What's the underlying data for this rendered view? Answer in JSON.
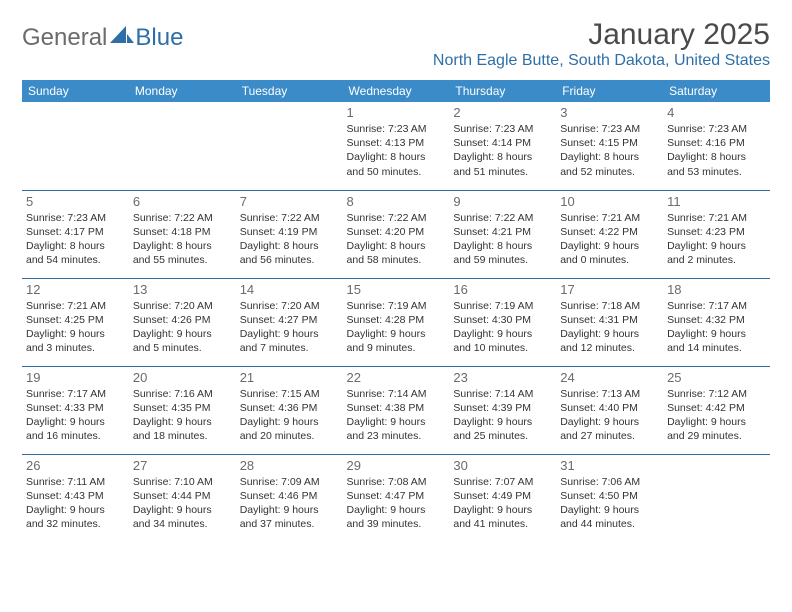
{
  "logo": {
    "text1": "General",
    "text2": "Blue"
  },
  "title": "January 2025",
  "location": "North Eagle Butte, South Dakota, United States",
  "colors": {
    "header_bg": "#3b8bc9",
    "header_text": "#ffffff",
    "rule": "#2f6fa8",
    "location_text": "#2f6fa8",
    "title_text": "#4a4a4a",
    "body_text": "#333333",
    "daynum_text": "#6b6b6b"
  },
  "day_headers": [
    "Sunday",
    "Monday",
    "Tuesday",
    "Wednesday",
    "Thursday",
    "Friday",
    "Saturday"
  ],
  "weeks": [
    [
      {
        "day": "",
        "sunrise": "",
        "sunset": "",
        "daylight": ""
      },
      {
        "day": "",
        "sunrise": "",
        "sunset": "",
        "daylight": ""
      },
      {
        "day": "",
        "sunrise": "",
        "sunset": "",
        "daylight": ""
      },
      {
        "day": "1",
        "sunrise": "7:23 AM",
        "sunset": "4:13 PM",
        "daylight": "8 hours and 50 minutes."
      },
      {
        "day": "2",
        "sunrise": "7:23 AM",
        "sunset": "4:14 PM",
        "daylight": "8 hours and 51 minutes."
      },
      {
        "day": "3",
        "sunrise": "7:23 AM",
        "sunset": "4:15 PM",
        "daylight": "8 hours and 52 minutes."
      },
      {
        "day": "4",
        "sunrise": "7:23 AM",
        "sunset": "4:16 PM",
        "daylight": "8 hours and 53 minutes."
      }
    ],
    [
      {
        "day": "5",
        "sunrise": "7:23 AM",
        "sunset": "4:17 PM",
        "daylight": "8 hours and 54 minutes."
      },
      {
        "day": "6",
        "sunrise": "7:22 AM",
        "sunset": "4:18 PM",
        "daylight": "8 hours and 55 minutes."
      },
      {
        "day": "7",
        "sunrise": "7:22 AM",
        "sunset": "4:19 PM",
        "daylight": "8 hours and 56 minutes."
      },
      {
        "day": "8",
        "sunrise": "7:22 AM",
        "sunset": "4:20 PM",
        "daylight": "8 hours and 58 minutes."
      },
      {
        "day": "9",
        "sunrise": "7:22 AM",
        "sunset": "4:21 PM",
        "daylight": "8 hours and 59 minutes."
      },
      {
        "day": "10",
        "sunrise": "7:21 AM",
        "sunset": "4:22 PM",
        "daylight": "9 hours and 0 minutes."
      },
      {
        "day": "11",
        "sunrise": "7:21 AM",
        "sunset": "4:23 PM",
        "daylight": "9 hours and 2 minutes."
      }
    ],
    [
      {
        "day": "12",
        "sunrise": "7:21 AM",
        "sunset": "4:25 PM",
        "daylight": "9 hours and 3 minutes."
      },
      {
        "day": "13",
        "sunrise": "7:20 AM",
        "sunset": "4:26 PM",
        "daylight": "9 hours and 5 minutes."
      },
      {
        "day": "14",
        "sunrise": "7:20 AM",
        "sunset": "4:27 PM",
        "daylight": "9 hours and 7 minutes."
      },
      {
        "day": "15",
        "sunrise": "7:19 AM",
        "sunset": "4:28 PM",
        "daylight": "9 hours and 9 minutes."
      },
      {
        "day": "16",
        "sunrise": "7:19 AM",
        "sunset": "4:30 PM",
        "daylight": "9 hours and 10 minutes."
      },
      {
        "day": "17",
        "sunrise": "7:18 AM",
        "sunset": "4:31 PM",
        "daylight": "9 hours and 12 minutes."
      },
      {
        "day": "18",
        "sunrise": "7:17 AM",
        "sunset": "4:32 PM",
        "daylight": "9 hours and 14 minutes."
      }
    ],
    [
      {
        "day": "19",
        "sunrise": "7:17 AM",
        "sunset": "4:33 PM",
        "daylight": "9 hours and 16 minutes."
      },
      {
        "day": "20",
        "sunrise": "7:16 AM",
        "sunset": "4:35 PM",
        "daylight": "9 hours and 18 minutes."
      },
      {
        "day": "21",
        "sunrise": "7:15 AM",
        "sunset": "4:36 PM",
        "daylight": "9 hours and 20 minutes."
      },
      {
        "day": "22",
        "sunrise": "7:14 AM",
        "sunset": "4:38 PM",
        "daylight": "9 hours and 23 minutes."
      },
      {
        "day": "23",
        "sunrise": "7:14 AM",
        "sunset": "4:39 PM",
        "daylight": "9 hours and 25 minutes."
      },
      {
        "day": "24",
        "sunrise": "7:13 AM",
        "sunset": "4:40 PM",
        "daylight": "9 hours and 27 minutes."
      },
      {
        "day": "25",
        "sunrise": "7:12 AM",
        "sunset": "4:42 PM",
        "daylight": "9 hours and 29 minutes."
      }
    ],
    [
      {
        "day": "26",
        "sunrise": "7:11 AM",
        "sunset": "4:43 PM",
        "daylight": "9 hours and 32 minutes."
      },
      {
        "day": "27",
        "sunrise": "7:10 AM",
        "sunset": "4:44 PM",
        "daylight": "9 hours and 34 minutes."
      },
      {
        "day": "28",
        "sunrise": "7:09 AM",
        "sunset": "4:46 PM",
        "daylight": "9 hours and 37 minutes."
      },
      {
        "day": "29",
        "sunrise": "7:08 AM",
        "sunset": "4:47 PM",
        "daylight": "9 hours and 39 minutes."
      },
      {
        "day": "30",
        "sunrise": "7:07 AM",
        "sunset": "4:49 PM",
        "daylight": "9 hours and 41 minutes."
      },
      {
        "day": "31",
        "sunrise": "7:06 AM",
        "sunset": "4:50 PM",
        "daylight": "9 hours and 44 minutes."
      },
      {
        "day": "",
        "sunrise": "",
        "sunset": "",
        "daylight": ""
      }
    ]
  ],
  "labels": {
    "sunrise": "Sunrise: ",
    "sunset": "Sunset: ",
    "daylight": "Daylight: "
  }
}
